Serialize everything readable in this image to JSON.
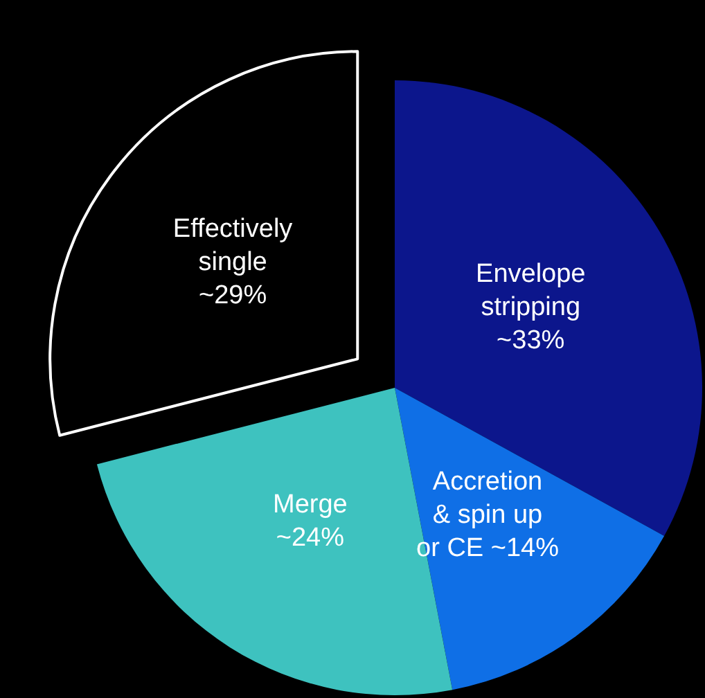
{
  "chart_data": {
    "type": "pie",
    "categories": [
      "Envelope\nstripping",
      "Accretion\n& spin up\nor CE",
      "Merge",
      "Effectively\nsingle"
    ],
    "values": [
      33,
      14,
      24,
      29
    ],
    "value_labels": [
      "~33%",
      "~14%",
      "~24%",
      "~29%"
    ],
    "colors": [
      "#0c168c",
      "#0f6fe6",
      "#3ec2bf",
      "#000000"
    ],
    "legend": false
  }
}
